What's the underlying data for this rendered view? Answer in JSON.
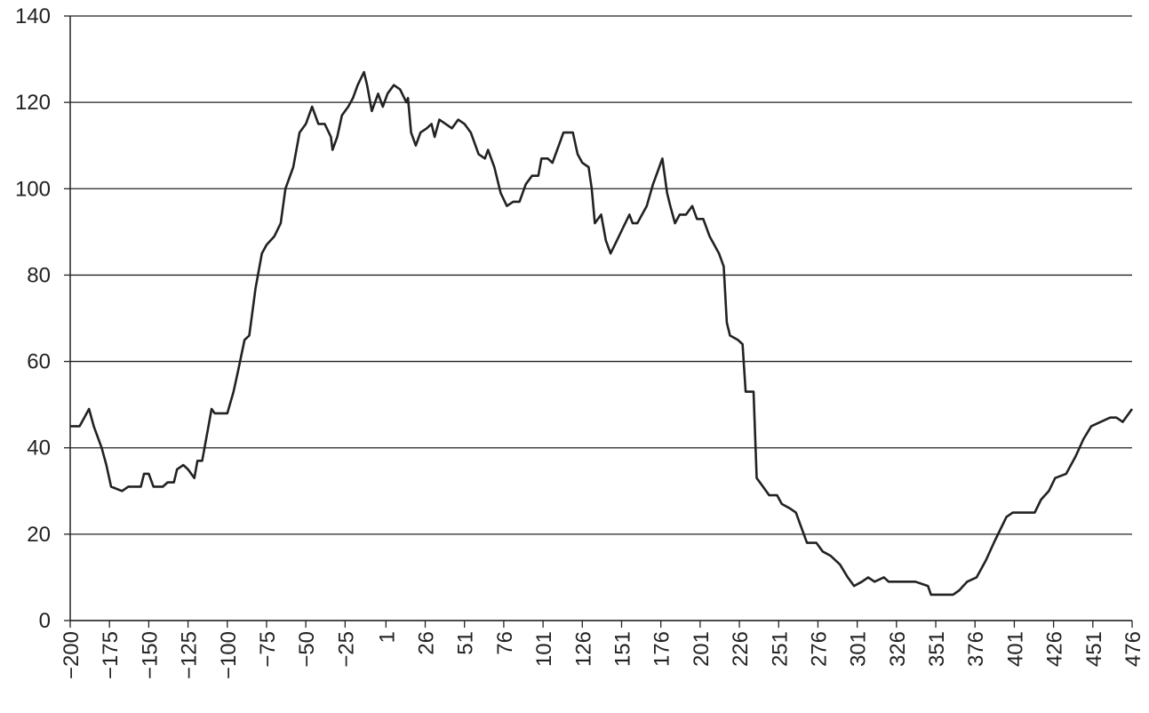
{
  "chart_data": {
    "type": "line",
    "x": [
      -200,
      -194,
      -191,
      -188,
      -185,
      -180,
      -177,
      -174,
      -167,
      -163,
      -155,
      -153,
      -150,
      -147,
      -141,
      -138,
      -134,
      -132,
      -128,
      -125,
      -121,
      -119,
      -116,
      -112,
      -110,
      -108,
      -100,
      -96,
      -93,
      -89,
      -86,
      -82,
      -78,
      -75,
      -70,
      -66,
      -63,
      -58,
      -54,
      -50,
      -46,
      -42,
      -38,
      -34,
      -33,
      -30,
      -27,
      -23,
      -20,
      -17,
      -13,
      -11,
      -8,
      -4,
      -1,
      2,
      6,
      10,
      14,
      15,
      17,
      20,
      23,
      27,
      30,
      32,
      35,
      39,
      43,
      47,
      51,
      55,
      60,
      64,
      66,
      70,
      74,
      78,
      82,
      86,
      90,
      94,
      98,
      100,
      104,
      107,
      111,
      114,
      120,
      123,
      126,
      130,
      132,
      134,
      138,
      141,
      144,
      148,
      152,
      156,
      158,
      161,
      164,
      167,
      171,
      175,
      177,
      180,
      182,
      185,
      188,
      192,
      196,
      199,
      203,
      207,
      210,
      213,
      216,
      218,
      220,
      225,
      228,
      230,
      235,
      237,
      241,
      245,
      250,
      253,
      258,
      262,
      264,
      269,
      275,
      279,
      284,
      290,
      295,
      299,
      304,
      308,
      312,
      318,
      321,
      338,
      346,
      348,
      362,
      366,
      371,
      377,
      383,
      388,
      392,
      396,
      400,
      414,
      418,
      423,
      427,
      434,
      440,
      445,
      450,
      456,
      462,
      466,
      470,
      476
    ],
    "values": [
      45,
      45,
      47,
      49,
      45,
      40,
      36,
      31,
      30,
      31,
      31,
      34,
      34,
      31,
      31,
      32,
      32,
      35,
      36,
      35,
      33,
      37,
      37,
      45,
      49,
      48,
      48,
      53,
      58,
      65,
      66,
      77,
      85,
      87,
      89,
      92,
      100,
      105,
      113,
      115,
      119,
      115,
      115,
      112,
      109,
      112,
      117,
      119,
      121,
      124,
      127,
      124,
      118,
      122,
      119,
      122,
      124,
      123,
      120,
      121,
      113,
      110,
      113,
      114,
      115,
      112,
      116,
      115,
      114,
      116,
      115,
      113,
      108,
      107,
      109,
      105,
      99,
      96,
      97,
      97,
      101,
      103,
      103,
      107,
      107,
      106,
      110,
      113,
      113,
      108,
      106,
      105,
      100,
      92,
      94,
      88,
      85,
      88,
      91,
      94,
      92,
      92,
      94,
      96,
      101,
      105,
      107,
      99,
      96,
      92,
      94,
      94,
      96,
      93,
      93,
      89,
      87,
      85,
      82,
      69,
      66,
      65,
      64,
      53,
      53,
      33,
      31,
      29,
      29,
      27,
      26,
      25,
      23,
      18,
      18,
      16,
      15,
      13,
      10,
      8,
      9,
      10,
      9,
      10,
      9,
      9,
      8,
      6,
      6,
      7,
      9,
      10,
      14,
      18,
      21,
      24,
      25,
      25,
      28,
      30,
      33,
      34,
      38,
      42,
      45,
      46,
      47,
      47,
      46,
      49
    ],
    "color": "#222222",
    "xlim": [
      -200,
      476
    ],
    "xticks": [
      {
        "value": -200,
        "label": "−200"
      },
      {
        "value": -175,
        "label": "−175"
      },
      {
        "value": -150,
        "label": "−150"
      },
      {
        "value": -125,
        "label": "−125"
      },
      {
        "value": -100,
        "label": "−100"
      },
      {
        "value": -75,
        "label": "−75"
      },
      {
        "value": -50,
        "label": "−50"
      },
      {
        "value": -25,
        "label": "−25"
      },
      1,
      26,
      51,
      76,
      101,
      126,
      151,
      176,
      201,
      226,
      251,
      276,
      301,
      326,
      351,
      376,
      401,
      426,
      451,
      476
    ],
    "ylim": [
      0,
      140
    ],
    "yticks": [
      0,
      20,
      40,
      60,
      80,
      100,
      120,
      140
    ],
    "grid": true
  }
}
